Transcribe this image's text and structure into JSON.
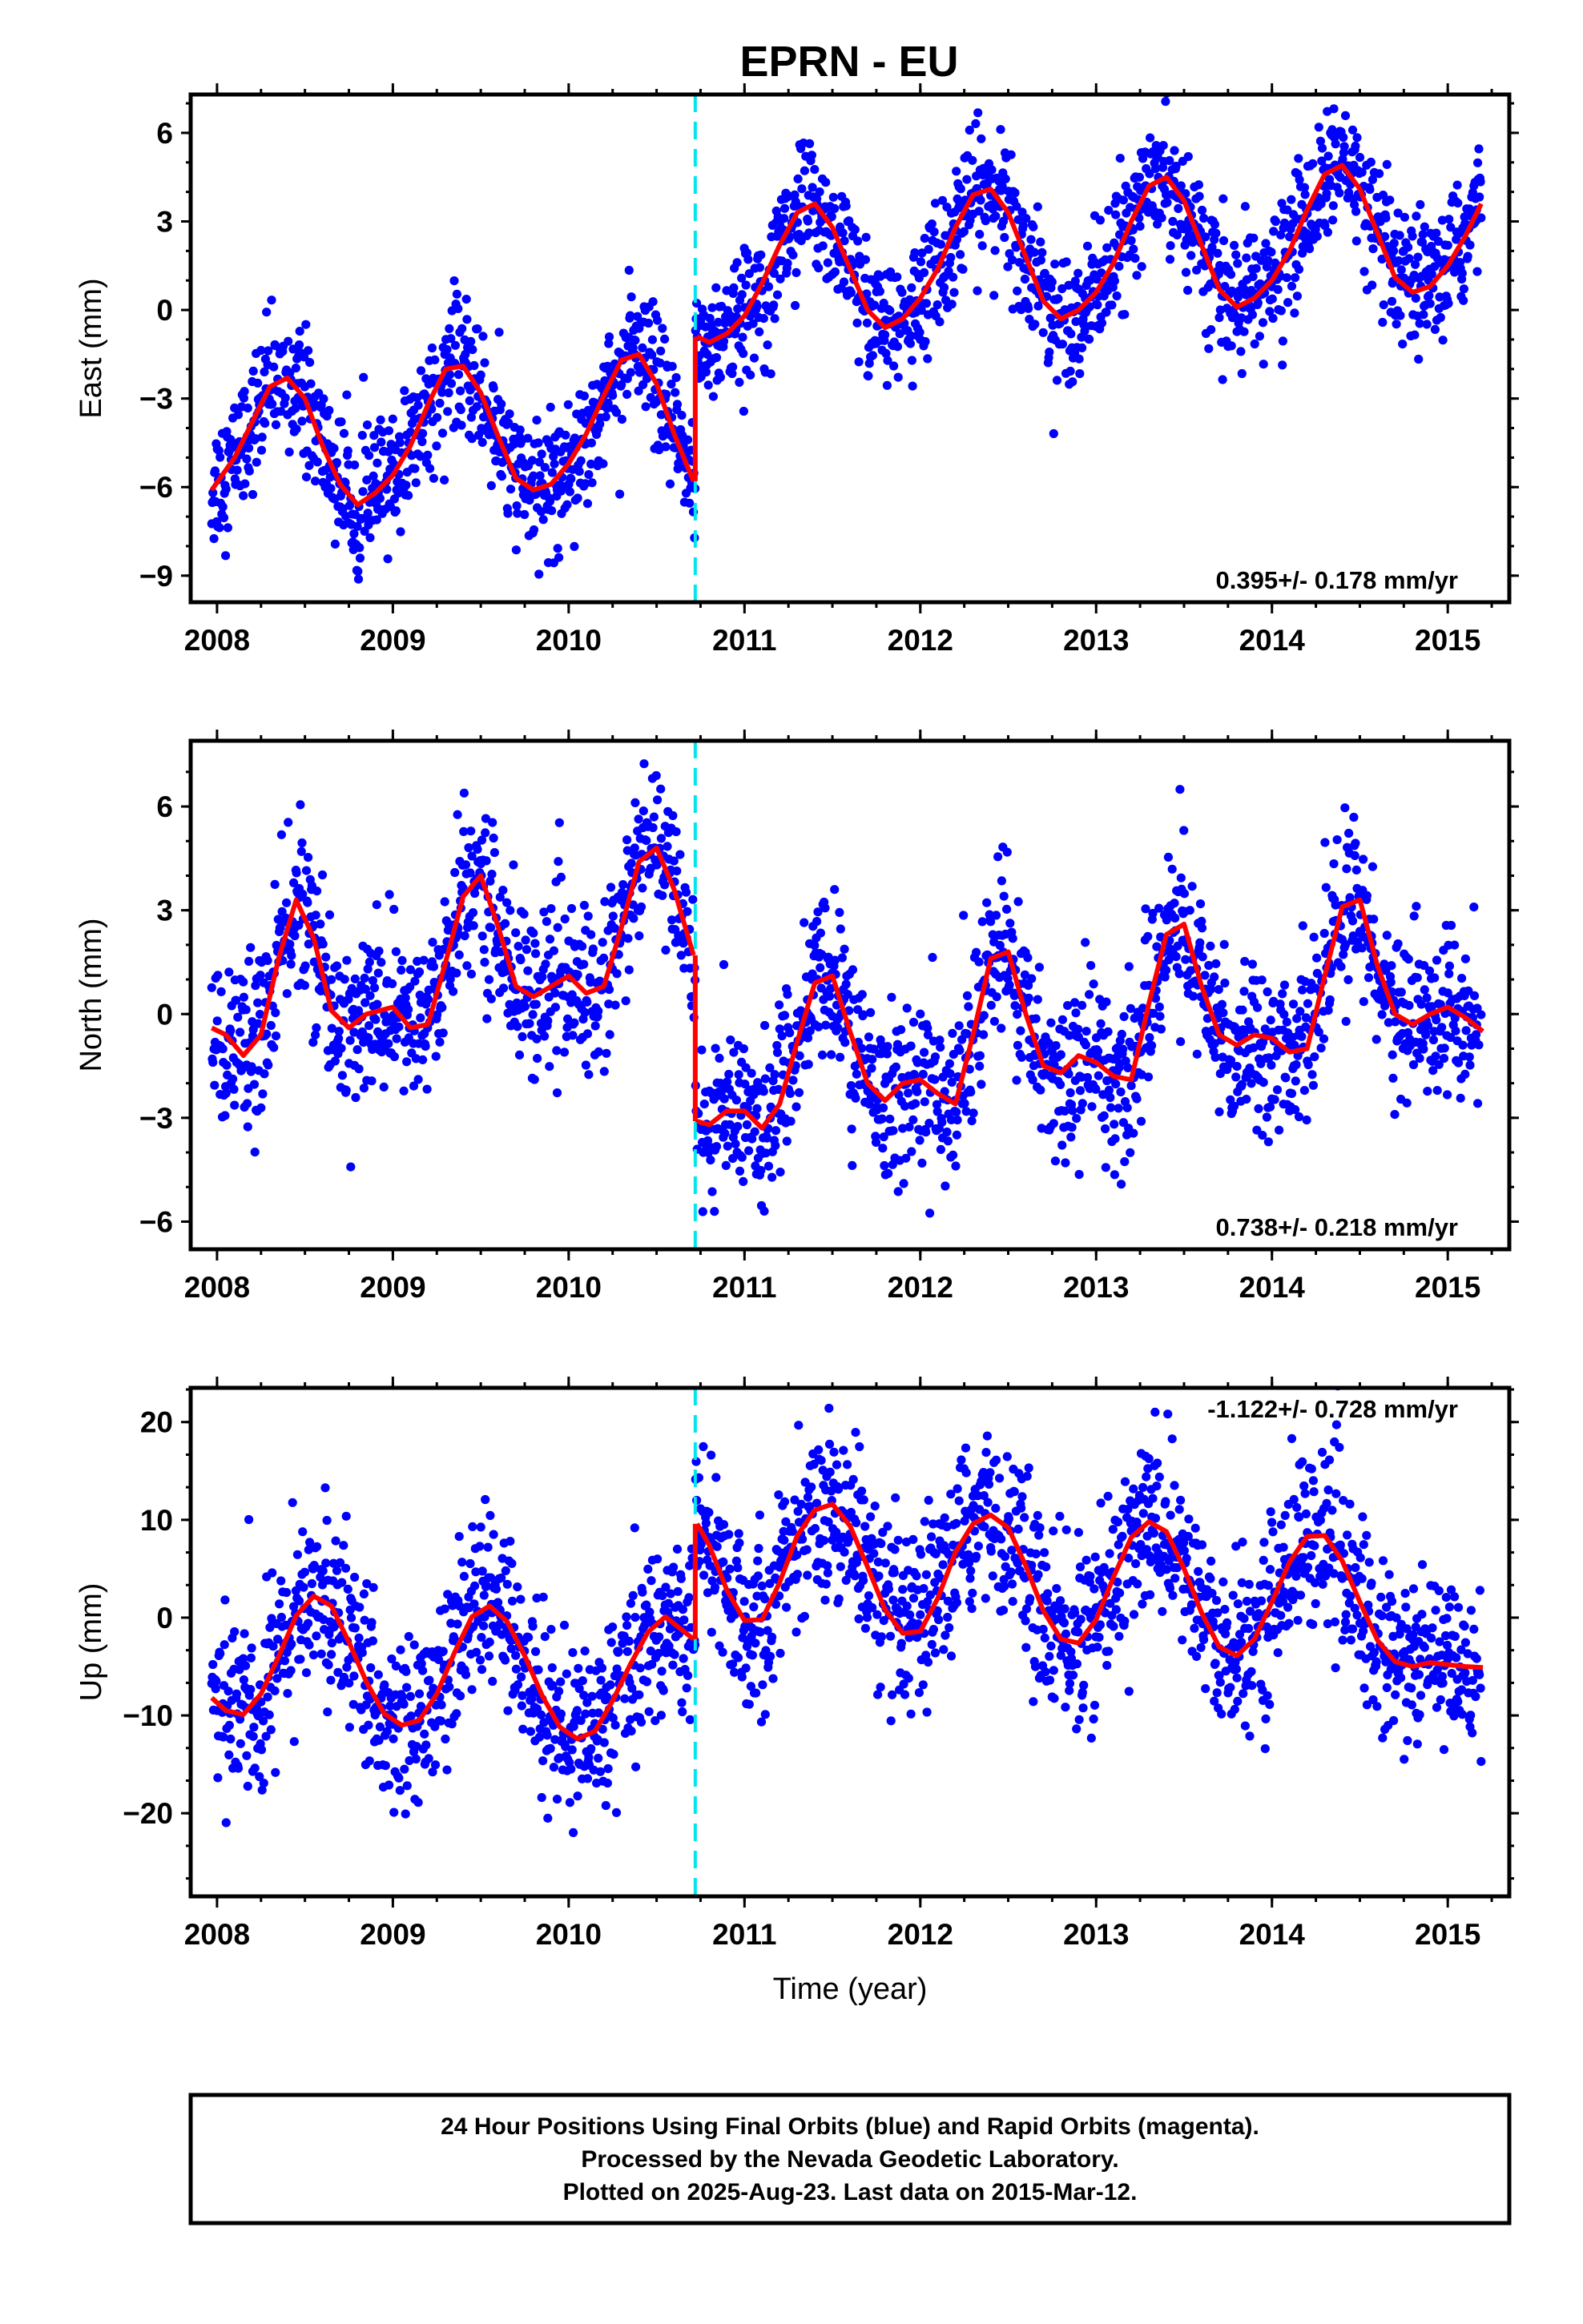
{
  "title": "EPRN - EU",
  "chart_data": [
    {
      "type": "scatter",
      "panel": "east",
      "ylabel": "East (mm)",
      "xlabel": "",
      "ylim": [
        -9.9,
        7.3
      ],
      "xlim": [
        2007.85,
        2015.35
      ],
      "yticks": [
        -9,
        -6,
        -3,
        0,
        3,
        6
      ],
      "xticks": [
        2008,
        2009,
        2010,
        2011,
        2012,
        2013,
        2014,
        2015
      ],
      "rate_label": "0.395+/- 0.178 mm/yr",
      "offset_epoch": 2010.72,
      "series": [
        {
          "name": "24 hour positions",
          "color": "#0000ff",
          "values": "daily positions, seasonal pattern around the fit, scatter ~1.1 mm"
        },
        {
          "name": "model fit",
          "color": "#ff0000",
          "x": [
            2007.97,
            2008.1,
            2008.2,
            2008.3,
            2008.4,
            2008.5,
            2008.6,
            2008.7,
            2008.8,
            2008.9,
            2009.0,
            2009.1,
            2009.2,
            2009.3,
            2009.4,
            2009.5,
            2009.6,
            2009.7,
            2009.8,
            2009.9,
            2010.0,
            2010.1,
            2010.2,
            2010.3,
            2010.4,
            2010.5,
            2010.6,
            2010.71
          ],
          "values": [
            -6.1,
            -5.0,
            -3.8,
            -2.6,
            -2.3,
            -3.0,
            -4.6,
            -5.9,
            -6.6,
            -6.2,
            -5.6,
            -4.6,
            -3.2,
            -2.0,
            -1.9,
            -2.8,
            -4.3,
            -5.7,
            -6.1,
            -5.9,
            -5.2,
            -4.2,
            -2.9,
            -1.7,
            -1.5,
            -2.5,
            -4.2,
            -5.8
          ]
        },
        {
          "name": "model fit after offset",
          "color": "#ff0000",
          "x": [
            2010.73,
            2010.8,
            2010.9,
            2011.0,
            2011.1,
            2011.2,
            2011.3,
            2011.4,
            2011.5,
            2011.6,
            2011.7,
            2011.8,
            2011.9,
            2012.0,
            2012.1,
            2012.2,
            2012.3,
            2012.4,
            2012.5,
            2012.6,
            2012.7,
            2012.8,
            2012.9,
            2013.0,
            2013.1,
            2013.2,
            2013.3,
            2013.4,
            2013.5,
            2013.6,
            2013.7,
            2013.8,
            2013.9,
            2014.0,
            2014.1,
            2014.2,
            2014.3,
            2014.4,
            2014.5,
            2014.6,
            2014.7,
            2014.8,
            2014.9,
            2015.0,
            2015.1,
            2015.19
          ],
          "values": [
            -0.9,
            -1.1,
            -0.8,
            -0.2,
            0.9,
            2.2,
            3.3,
            3.6,
            2.8,
            1.4,
            0.0,
            -0.6,
            -0.3,
            0.4,
            1.4,
            2.8,
            3.9,
            4.1,
            3.3,
            1.8,
            0.3,
            -0.3,
            0.0,
            0.6,
            1.6,
            3.0,
            4.2,
            4.5,
            3.7,
            2.2,
            0.7,
            0.1,
            0.4,
            1.0,
            2.0,
            3.4,
            4.6,
            4.9,
            4.1,
            2.6,
            1.1,
            0.6,
            0.8,
            1.5,
            2.5,
            3.6
          ]
        }
      ]
    },
    {
      "type": "scatter",
      "panel": "north",
      "ylabel": "North (mm)",
      "xlabel": "",
      "ylim": [
        -6.8,
        7.9
      ],
      "xlim": [
        2007.85,
        2015.35
      ],
      "yticks": [
        -6,
        -3,
        0,
        3,
        6
      ],
      "xticks": [
        2008,
        2009,
        2010,
        2011,
        2012,
        2013,
        2014,
        2015
      ],
      "rate_label": "0.738+/- 0.218 mm/yr",
      "offset_epoch": 2010.72,
      "series": [
        {
          "name": "24 hour positions",
          "color": "#0000ff",
          "values": "daily positions, scatter ~1.2 mm"
        },
        {
          "name": "model fit",
          "color": "#ff0000",
          "x": [
            2007.97,
            2008.05,
            2008.15,
            2008.25,
            2008.35,
            2008.45,
            2008.55,
            2008.65,
            2008.75,
            2008.85,
            2009.0,
            2009.1,
            2009.2,
            2009.3,
            2009.4,
            2009.5,
            2009.6,
            2009.7,
            2009.8,
            2009.9,
            2010.0,
            2010.1,
            2010.2,
            2010.3,
            2010.4,
            2010.5,
            2010.6,
            2010.71
          ],
          "values": [
            -0.4,
            -0.6,
            -1.2,
            -0.6,
            1.6,
            3.3,
            2.2,
            0.1,
            -0.4,
            0.0,
            0.2,
            -0.4,
            -0.3,
            1.5,
            3.4,
            4.0,
            2.5,
            0.8,
            0.5,
            0.8,
            1.1,
            0.6,
            0.8,
            2.5,
            4.4,
            4.8,
            3.6,
            1.7
          ]
        },
        {
          "name": "model fit after offset",
          "color": "#ff0000",
          "x": [
            2010.73,
            2010.8,
            2010.9,
            2011.0,
            2011.1,
            2011.2,
            2011.3,
            2011.4,
            2011.5,
            2011.6,
            2011.7,
            2011.8,
            2011.9,
            2012.0,
            2012.1,
            2012.2,
            2012.3,
            2012.4,
            2012.5,
            2012.6,
            2012.7,
            2012.8,
            2012.9,
            2013.0,
            2013.1,
            2013.2,
            2013.3,
            2013.4,
            2013.5,
            2013.6,
            2013.7,
            2013.8,
            2013.9,
            2014.0,
            2014.1,
            2014.2,
            2014.3,
            2014.4,
            2014.5,
            2014.6,
            2014.7,
            2014.8,
            2014.9,
            2015.0,
            2015.1,
            2015.2
          ],
          "values": [
            -3.1,
            -3.2,
            -2.8,
            -2.8,
            -3.3,
            -2.6,
            -0.8,
            0.9,
            1.1,
            -0.5,
            -2.0,
            -2.5,
            -2.0,
            -1.9,
            -2.3,
            -2.6,
            -0.6,
            1.6,
            1.8,
            0.0,
            -1.5,
            -1.7,
            -1.2,
            -1.4,
            -1.8,
            -1.9,
            0.3,
            2.3,
            2.6,
            0.8,
            -0.6,
            -0.9,
            -0.6,
            -0.7,
            -1.1,
            -1.0,
            1.1,
            3.1,
            3.3,
            1.4,
            0.0,
            -0.3,
            0.0,
            0.2,
            -0.1,
            -0.5
          ]
        }
      ]
    },
    {
      "type": "scatter",
      "panel": "up",
      "ylabel": "Up (mm)",
      "xlabel": "Time (year)",
      "ylim": [
        -28.5,
        23.5
      ],
      "xlim": [
        2007.85,
        2015.35
      ],
      "yticks": [
        -20,
        -10,
        0,
        10,
        20
      ],
      "xticks": [
        2008,
        2009,
        2010,
        2011,
        2012,
        2013,
        2014,
        2015
      ],
      "rate_label": "-1.122+/- 0.728 mm/yr",
      "offset_epoch": 2010.72,
      "series": [
        {
          "name": "24 hour positions",
          "color": "#0000ff",
          "values": "daily positions, scatter ~4.5 mm"
        },
        {
          "name": "model fit",
          "color": "#ff0000",
          "x": [
            2007.97,
            2008.05,
            2008.15,
            2008.25,
            2008.35,
            2008.45,
            2008.55,
            2008.65,
            2008.75,
            2008.85,
            2008.95,
            2009.05,
            2009.15,
            2009.25,
            2009.35,
            2009.45,
            2009.55,
            2009.65,
            2009.75,
            2009.85,
            2009.95,
            2010.05,
            2010.15,
            2010.25,
            2010.35,
            2010.45,
            2010.55,
            2010.71
          ],
          "values": [
            -8.2,
            -9.5,
            -9.9,
            -7.8,
            -4.0,
            0.2,
            2.2,
            1.2,
            -2.5,
            -6.6,
            -9.8,
            -11.0,
            -10.5,
            -7.8,
            -3.6,
            0.1,
            1.2,
            -0.4,
            -3.9,
            -8.0,
            -11.2,
            -12.4,
            -11.6,
            -8.5,
            -4.8,
            -1.5,
            0.1,
            -2.2
          ]
        },
        {
          "name": "model fit after offset",
          "color": "#ff0000",
          "x": [
            2010.73,
            2010.8,
            2010.9,
            2011.0,
            2011.1,
            2011.2,
            2011.3,
            2011.4,
            2011.5,
            2011.6,
            2011.7,
            2011.8,
            2011.9,
            2012.0,
            2012.1,
            2012.2,
            2012.3,
            2012.4,
            2012.5,
            2012.6,
            2012.7,
            2012.8,
            2012.9,
            2013.0,
            2013.1,
            2013.2,
            2013.3,
            2013.4,
            2013.5,
            2013.6,
            2013.7,
            2013.8,
            2013.9,
            2014.0,
            2014.1,
            2014.2,
            2014.3,
            2014.4,
            2014.5,
            2014.6,
            2014.7,
            2014.8,
            2014.9,
            2015.0,
            2015.1,
            2015.2
          ],
          "values": [
            9.6,
            7.4,
            2.8,
            -0.3,
            -0.2,
            3.6,
            8.4,
            11.0,
            11.6,
            9.4,
            5.2,
            0.8,
            -1.6,
            -1.4,
            2.0,
            6.7,
            9.6,
            10.5,
            9.2,
            5.3,
            0.7,
            -2.2,
            -2.6,
            -0.2,
            4.2,
            8.2,
            9.8,
            8.8,
            5.0,
            0.5,
            -3.0,
            -3.9,
            -2.2,
            1.6,
            5.7,
            8.3,
            8.4,
            5.8,
            1.6,
            -2.3,
            -4.5,
            -5.0,
            -4.6,
            -4.8,
            -5.0,
            -5.1
          ]
        }
      ]
    }
  ],
  "footer": {
    "line1": "24 Hour Positions Using Final Orbits (blue) and Rapid Orbits (magenta).",
    "line2": "Processed by the Nevada Geodetic Laboratory.",
    "line3": "Plotted on 2025-Aug-23. Last data on 2015-Mar-12."
  }
}
